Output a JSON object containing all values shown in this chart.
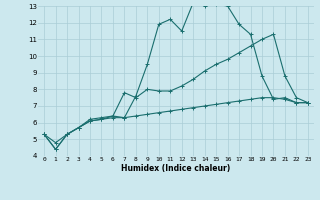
{
  "xlabel": "Humidex (Indice chaleur)",
  "xlim": [
    -0.5,
    23.5
  ],
  "ylim": [
    4,
    13
  ],
  "xticks": [
    0,
    1,
    2,
    3,
    4,
    5,
    6,
    7,
    8,
    9,
    10,
    11,
    12,
    13,
    14,
    15,
    16,
    17,
    18,
    19,
    20,
    21,
    22,
    23
  ],
  "yticks": [
    4,
    5,
    6,
    7,
    8,
    9,
    10,
    11,
    12,
    13
  ],
  "bg_color": "#cce8ee",
  "grid_color": "#aacdd6",
  "line_color": "#1a6e6e",
  "line1_x": [
    0,
    1,
    2,
    3,
    4,
    5,
    6,
    7,
    8,
    9,
    10,
    11,
    12,
    13,
    14,
    15,
    16,
    17,
    18,
    19,
    20,
    21,
    22,
    23
  ],
  "line1_y": [
    5.3,
    4.4,
    5.3,
    5.7,
    6.2,
    6.3,
    6.4,
    6.3,
    7.6,
    9.5,
    11.9,
    12.2,
    11.5,
    13.2,
    13.0,
    13.1,
    13.0,
    11.9,
    11.3,
    8.8,
    7.4,
    7.5,
    7.2,
    7.2
  ],
  "line2_x": [
    0,
    1,
    2,
    3,
    4,
    5,
    6,
    7,
    8,
    9,
    10,
    11,
    12,
    13,
    14,
    15,
    16,
    17,
    18,
    19,
    20,
    21,
    22,
    23
  ],
  "line2_y": [
    5.3,
    4.4,
    5.3,
    5.7,
    6.1,
    6.2,
    6.4,
    7.8,
    7.5,
    8.0,
    7.9,
    7.9,
    8.2,
    8.6,
    9.1,
    9.5,
    9.8,
    10.2,
    10.6,
    11.0,
    11.3,
    8.8,
    7.5,
    7.2
  ],
  "line3_x": [
    0,
    1,
    2,
    3,
    4,
    5,
    6,
    7,
    8,
    9,
    10,
    11,
    12,
    13,
    14,
    15,
    16,
    17,
    18,
    19,
    20,
    21,
    22,
    23
  ],
  "line3_y": [
    5.3,
    4.8,
    5.3,
    5.7,
    6.1,
    6.2,
    6.3,
    6.3,
    6.4,
    6.5,
    6.6,
    6.7,
    6.8,
    6.9,
    7.0,
    7.1,
    7.2,
    7.3,
    7.4,
    7.5,
    7.5,
    7.4,
    7.2,
    7.2
  ]
}
